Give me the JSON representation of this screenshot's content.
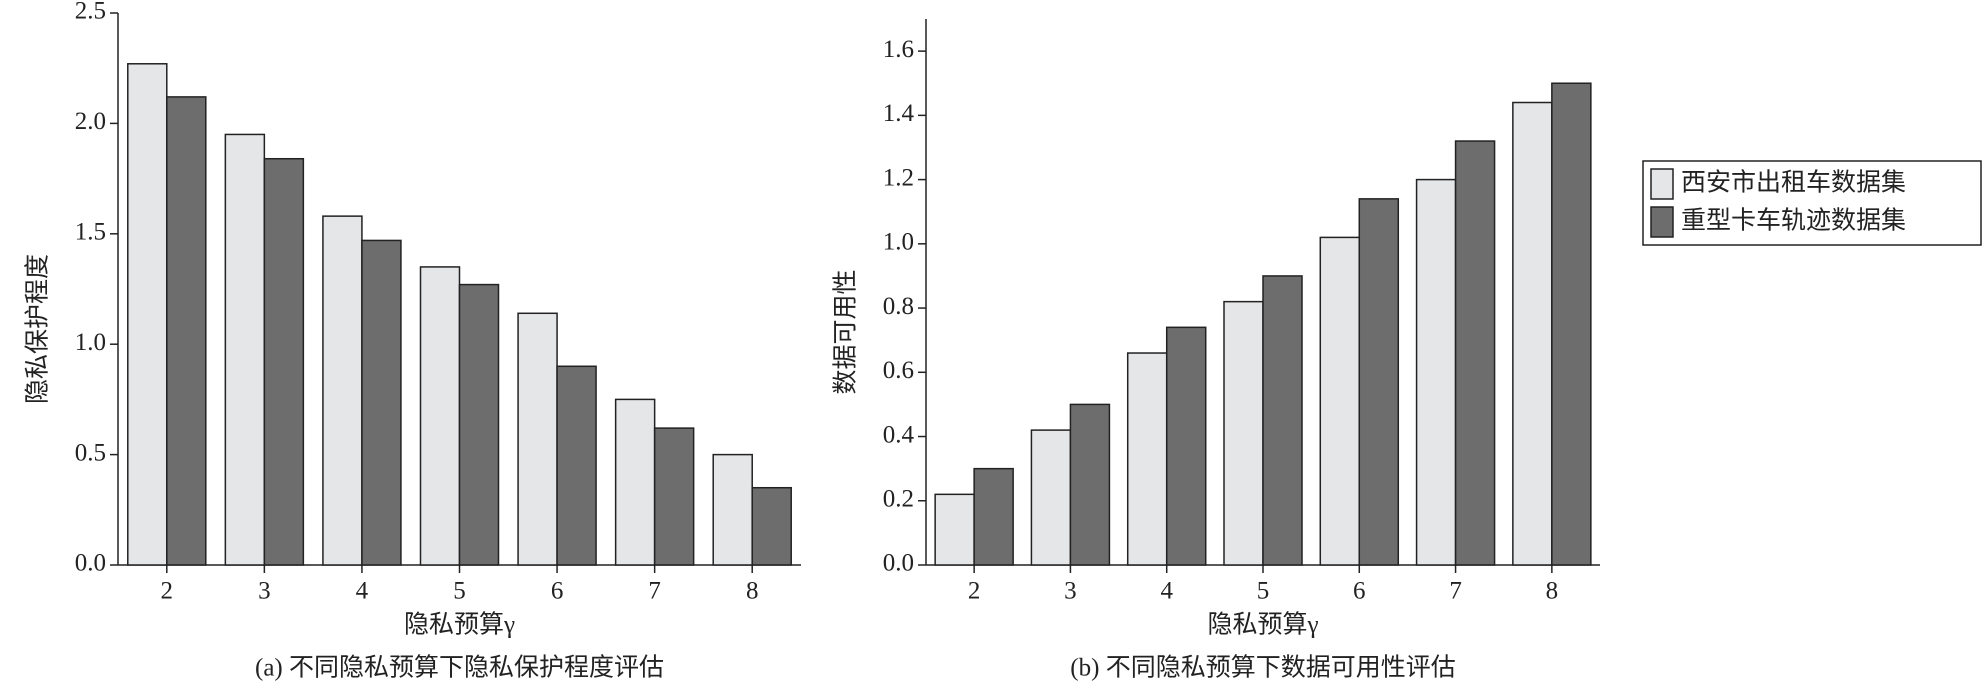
{
  "chart_data": [
    {
      "type": "bar",
      "y_label": "隐私保护程度",
      "x_label": "隐私预算γ",
      "caption": "(a) 不同隐私预算下隐私保护程度评估",
      "categories": [
        "2",
        "3",
        "4",
        "5",
        "6",
        "7",
        "8"
      ],
      "series": [
        {
          "color": "#e5e6e8",
          "values": [
            2.27,
            1.95,
            1.58,
            1.35,
            1.14,
            0.75,
            0.5
          ]
        },
        {
          "color": "#6d6d6d",
          "values": [
            2.12,
            1.84,
            1.47,
            1.27,
            0.9,
            0.62,
            0.35
          ]
        }
      ],
      "ylim": [
        0,
        2.5
      ],
      "yticks": [
        {
          "value": 0,
          "label": "0.0"
        },
        0.5,
        {
          "value": 1,
          "label": "1.0"
        },
        1.5,
        {
          "value": 2,
          "label": "2.0"
        },
        2.5
      ]
    },
    {
      "type": "bar",
      "y_label": "数据可用性",
      "x_label": "隐私预算γ",
      "caption": "(b) 不同隐私预算下数据可用性评估",
      "categories": [
        "2",
        "3",
        "4",
        "5",
        "6",
        "7",
        "8"
      ],
      "series": [
        {
          "name": "西安市出租车数据集",
          "color": "#e5e6e8",
          "values": [
            0.22,
            0.42,
            0.66,
            0.82,
            1.02,
            1.2,
            1.44
          ]
        },
        {
          "name": "重型卡车轨迹数据集",
          "color": "#6d6d6d",
          "values": [
            0.3,
            0.5,
            0.74,
            0.9,
            1.14,
            1.32,
            1.5
          ]
        }
      ],
      "ylim": [
        0,
        1.7
      ],
      "yticks": [
        {
          "value": 0,
          "label": "0.0"
        },
        0.2,
        0.4,
        0.6,
        0.8,
        {
          "value": 1,
          "label": "1.0"
        },
        1.2,
        1.4,
        1.6
      ],
      "legend": "right"
    }
  ]
}
